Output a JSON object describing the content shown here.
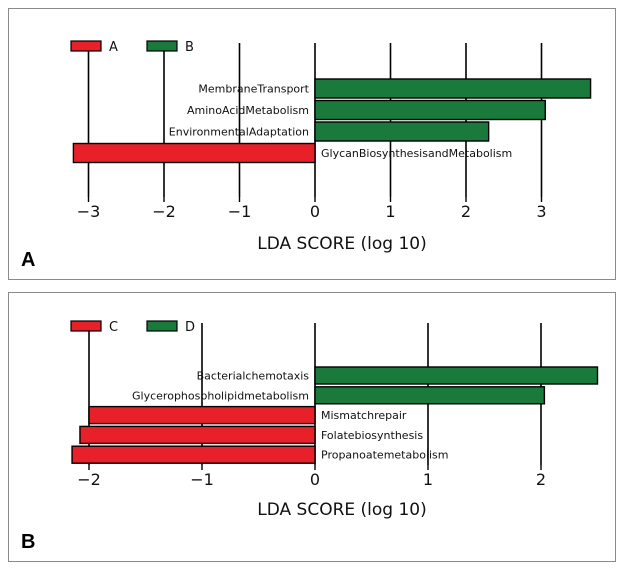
{
  "chart_data": [
    {
      "type": "bar",
      "orientation": "horizontal",
      "panel_label": "A",
      "xlabel": "LDA SCORE (log 10)",
      "xlim": [
        -3.2,
        3.65
      ],
      "xticks": [
        -3,
        -2,
        -1,
        0,
        1,
        2,
        3
      ],
      "tick_labels": [
        "−3",
        "−2",
        "−1",
        "0",
        "1",
        "2",
        "3"
      ],
      "grid": "vertical",
      "legend": [
        {
          "name": "A",
          "color": "#e8202a"
        },
        {
          "name": "B",
          "color": "#1a7a3c"
        }
      ],
      "legend_position": "top-left",
      "categories": [
        "MembraneTransport",
        "AminoAcidMetabolism",
        "EnvironmentalAdaptation",
        "GlycanBiosynthesisandMetabolism"
      ],
      "values": [
        3.65,
        3.05,
        2.3,
        -3.2
      ],
      "groups": [
        "B",
        "B",
        "B",
        "A"
      ]
    },
    {
      "type": "bar",
      "orientation": "horizontal",
      "panel_label": "B",
      "xlabel": "LDA SCORE (log 10)",
      "xlim": [
        -2.15,
        2.5
      ],
      "xticks": [
        -2,
        -1,
        0,
        1,
        2
      ],
      "tick_labels": [
        "−2",
        "−1",
        "0",
        "1",
        "2"
      ],
      "grid": "vertical",
      "legend": [
        {
          "name": "C",
          "color": "#e8202a"
        },
        {
          "name": "D",
          "color": "#1a7a3c"
        }
      ],
      "legend_position": "top-left",
      "categories": [
        "Bacterialchemotaxis",
        "Glycerophospholipidmetabolism",
        "Mismatchrepair",
        "Folatebiosynthesis",
        "Propanoatemetabolism"
      ],
      "values": [
        2.5,
        2.03,
        -2.0,
        -2.08,
        -2.15
      ],
      "groups": [
        "D",
        "D",
        "C",
        "C",
        "C"
      ]
    }
  ]
}
